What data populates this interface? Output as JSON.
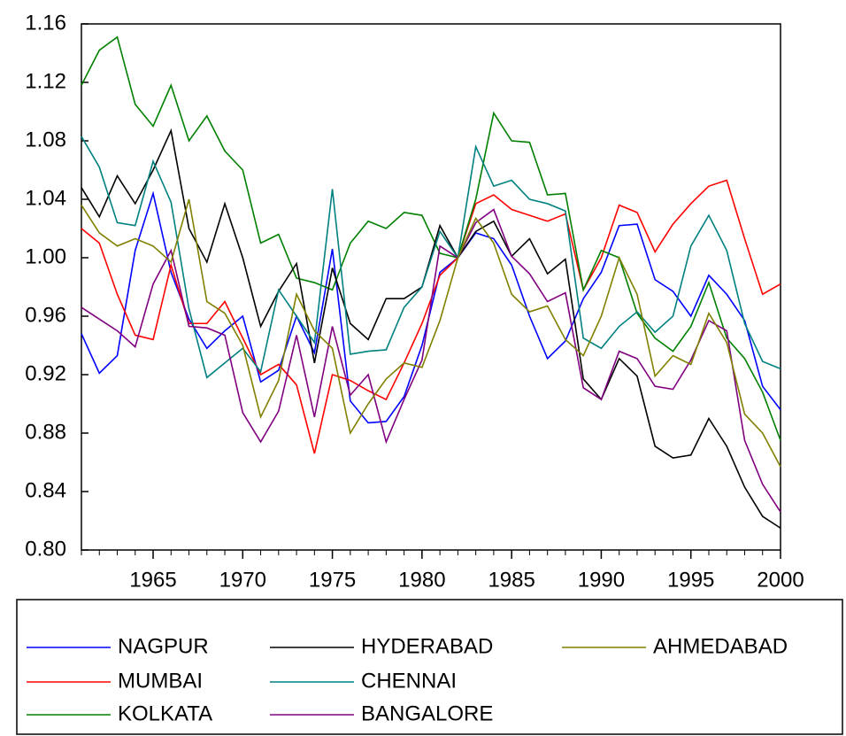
{
  "chart_data": {
    "type": "line",
    "x": [
      1961,
      1962,
      1963,
      1964,
      1965,
      1966,
      1967,
      1968,
      1969,
      1970,
      1971,
      1972,
      1973,
      1974,
      1975,
      1976,
      1977,
      1978,
      1979,
      1980,
      1981,
      1982,
      1983,
      1984,
      1985,
      1986,
      1987,
      1988,
      1989,
      1990,
      1991,
      1992,
      1993,
      1994,
      1995,
      1996,
      1997,
      1998,
      1999,
      2000
    ],
    "xlim": [
      1961,
      2000
    ],
    "xticks": [
      1965,
      1970,
      1975,
      1980,
      1985,
      1990,
      1995,
      2000
    ],
    "ylim": [
      0.8,
      1.16
    ],
    "yticks": [
      {
        "value": 0.8,
        "label": "0.80"
      },
      0.84,
      0.88,
      0.92,
      0.96,
      {
        "value": 1.0,
        "label": "1.00"
      },
      1.04,
      1.08,
      1.12,
      1.16
    ],
    "series": [
      {
        "name": "NAGPUR",
        "color": "#0000ff",
        "values": [
          0.948,
          0.921,
          0.933,
          1.005,
          1.044,
          0.99,
          0.958,
          0.938,
          0.95,
          0.96,
          0.915,
          0.923,
          0.96,
          0.935,
          1.006,
          0.902,
          0.887,
          0.888,
          0.905,
          0.94,
          0.99,
          1.0,
          1.017,
          1.013,
          0.995,
          0.96,
          0.931,
          0.943,
          0.972,
          0.99,
          1.022,
          1.023,
          0.985,
          0.977,
          0.96,
          0.988,
          0.975,
          0.957,
          0.912,
          0.896
        ]
      },
      {
        "name": "MUMBAI",
        "color": "#ff0000",
        "values": [
          1.02,
          1.01,
          0.975,
          0.947,
          0.944,
          0.995,
          0.955,
          0.955,
          0.97,
          0.945,
          0.92,
          0.927,
          0.913,
          0.866,
          0.92,
          0.916,
          0.909,
          0.903,
          0.928,
          0.955,
          0.988,
          1.0,
          1.037,
          1.043,
          1.033,
          1.029,
          1.025,
          1.03,
          0.978,
          1.0,
          1.036,
          1.031,
          1.004,
          1.023,
          1.037,
          1.049,
          1.053,
          1.013,
          0.975,
          0.982
        ]
      },
      {
        "name": "KOLKATA",
        "color": "#008000",
        "values": [
          1.118,
          1.142,
          1.151,
          1.105,
          1.09,
          1.118,
          1.08,
          1.097,
          1.073,
          1.06,
          1.01,
          1.016,
          0.986,
          0.983,
          0.978,
          1.01,
          1.025,
          1.02,
          1.031,
          1.029,
          1.003,
          1.0,
          1.04,
          1.099,
          1.08,
          1.079,
          1.043,
          1.044,
          0.978,
          1.005,
          1.0,
          0.962,
          0.945,
          0.936,
          0.953,
          0.983,
          0.945,
          0.931,
          0.908,
          0.875
        ]
      },
      {
        "name": "HYDERABAD",
        "color": "#000000",
        "values": [
          1.048,
          1.028,
          1.056,
          1.037,
          1.06,
          1.087,
          1.02,
          0.997,
          1.037,
          1.0,
          0.953,
          0.977,
          0.996,
          0.928,
          0.993,
          0.955,
          0.944,
          0.972,
          0.972,
          0.98,
          1.022,
          1.0,
          1.018,
          1.025,
          1.001,
          1.013,
          0.989,
          0.999,
          0.917,
          0.903,
          0.931,
          0.919,
          0.871,
          0.863,
          0.865,
          0.89,
          0.871,
          0.843,
          0.823,
          0.815
        ]
      },
      {
        "name": "CHENNAI",
        "color": "#008080",
        "values": [
          1.083,
          1.062,
          1.024,
          1.022,
          1.066,
          1.038,
          0.965,
          0.918,
          0.928,
          0.938,
          0.922,
          0.978,
          0.96,
          0.942,
          1.047,
          0.934,
          0.936,
          0.937,
          0.966,
          0.98,
          1.018,
          1.0,
          1.076,
          1.049,
          1.053,
          1.04,
          1.037,
          1.032,
          0.945,
          0.938,
          0.953,
          0.963,
          0.949,
          0.96,
          1.008,
          1.029,
          1.005,
          0.955,
          0.929,
          0.924
        ]
      },
      {
        "name": "BANGALORE",
        "color": "#800080",
        "values": [
          0.966,
          0.958,
          0.95,
          0.939,
          0.982,
          1.005,
          0.953,
          0.952,
          0.947,
          0.894,
          0.874,
          0.895,
          0.947,
          0.891,
          0.953,
          0.906,
          0.92,
          0.874,
          0.903,
          0.93,
          1.008,
          1.0,
          1.024,
          1.033,
          1.001,
          0.989,
          0.97,
          0.976,
          0.911,
          0.903,
          0.936,
          0.931,
          0.912,
          0.91,
          0.93,
          0.957,
          0.95,
          0.875,
          0.845,
          0.826
        ]
      },
      {
        "name": "AHMEDABAD",
        "color": "#808000",
        "values": [
          1.036,
          1.017,
          1.008,
          1.013,
          1.008,
          0.997,
          1.04,
          0.97,
          0.962,
          0.94,
          0.891,
          0.916,
          0.975,
          0.95,
          0.938,
          0.88,
          0.9,
          0.917,
          0.928,
          0.925,
          0.957,
          1.0,
          1.027,
          1.01,
          0.975,
          0.963,
          0.967,
          0.944,
          0.933,
          0.96,
          1.0,
          0.975,
          0.919,
          0.933,
          0.927,
          0.962,
          0.942,
          0.893,
          0.88,
          0.857
        ]
      }
    ]
  }
}
